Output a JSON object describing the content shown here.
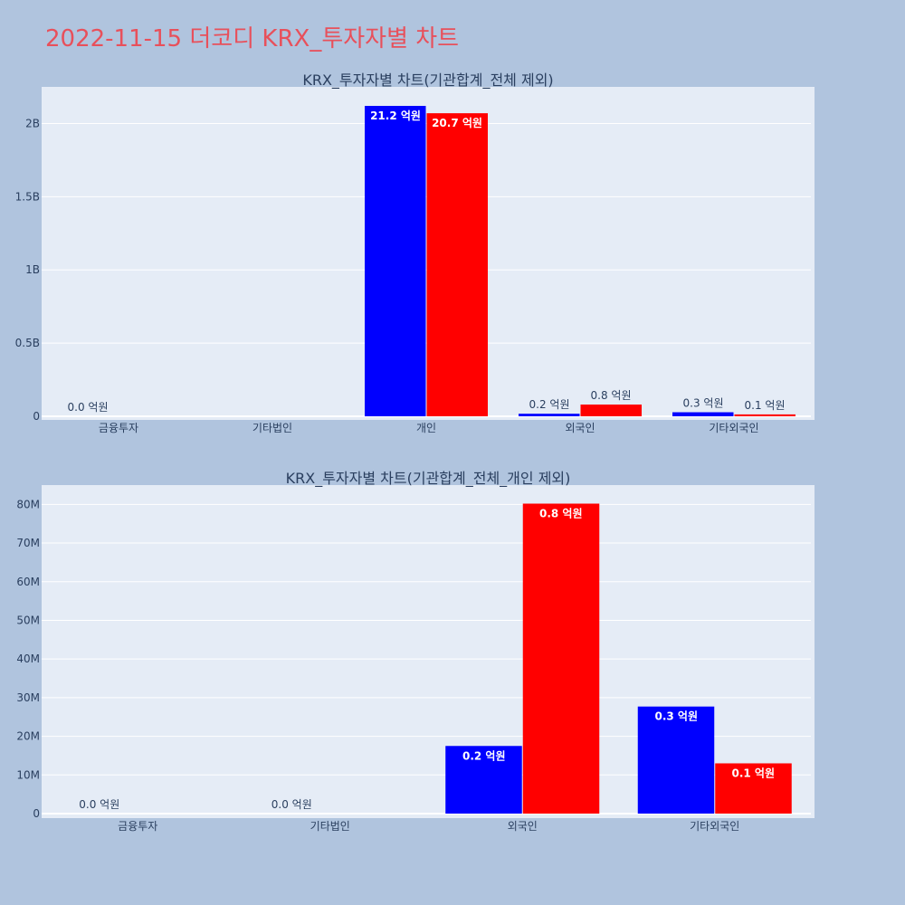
{
  "page": {
    "title": "2022-11-15 더코디 KRX_투자자별 차트"
  },
  "colors": {
    "background": "#b0c4de",
    "plot_bg": "#e5ecf6",
    "buy": "#0000ff",
    "sell": "#ff0000",
    "title": "#e8505b"
  },
  "chart_data": [
    {
      "type": "bar",
      "title": "KRX_투자자별 차트(기관합계_전체 제외)",
      "categories": [
        "금융투자",
        "기타법인",
        "개인",
        "외국인",
        "기타외국인"
      ],
      "series": [
        {
          "values": [
            0,
            0,
            2120000000,
            17500000,
            27700000
          ]
        },
        {
          "values": [
            0,
            0,
            2070000000,
            80200000,
            13000000
          ]
        }
      ],
      "data_labels": [
        [
          "0.0 억원",
          "",
          "21.2 억원",
          "0.2 억원",
          "0.3 억원"
        ],
        [
          "",
          "",
          "20.7 억원",
          "0.8 억원",
          "0.1 억원"
        ]
      ],
      "ylim": [
        0,
        2250000000
      ],
      "yticks": [
        0,
        500000000,
        1000000000,
        1500000000,
        2000000000
      ],
      "ytick_labels": [
        "0",
        "0.5B",
        "1B",
        "1.5B",
        "2B"
      ],
      "grid": true,
      "legend": "none"
    },
    {
      "type": "bar",
      "title": "KRX_투자자별 차트(기관합계_전체_개인 제외)",
      "categories": [
        "금융투자",
        "기타법인",
        "외국인",
        "기타외국인"
      ],
      "series": [
        {
          "values": [
            0,
            0,
            17500000,
            27700000
          ]
        },
        {
          "values": [
            0,
            0,
            80200000,
            13000000
          ]
        }
      ],
      "data_labels": [
        [
          "0.0 억원",
          "0.0 억원",
          "0.2 억원",
          "0.3 억원"
        ],
        [
          "",
          "",
          "0.8 억원",
          "0.1 억원"
        ]
      ],
      "ylim": [
        0,
        85000000
      ],
      "yticks": [
        0,
        10000000,
        20000000,
        30000000,
        40000000,
        50000000,
        60000000,
        70000000,
        80000000
      ],
      "ytick_labels": [
        "0",
        "10M",
        "20M",
        "30M",
        "40M",
        "50M",
        "60M",
        "70M",
        "80M"
      ],
      "grid": true,
      "legend": "none"
    }
  ]
}
